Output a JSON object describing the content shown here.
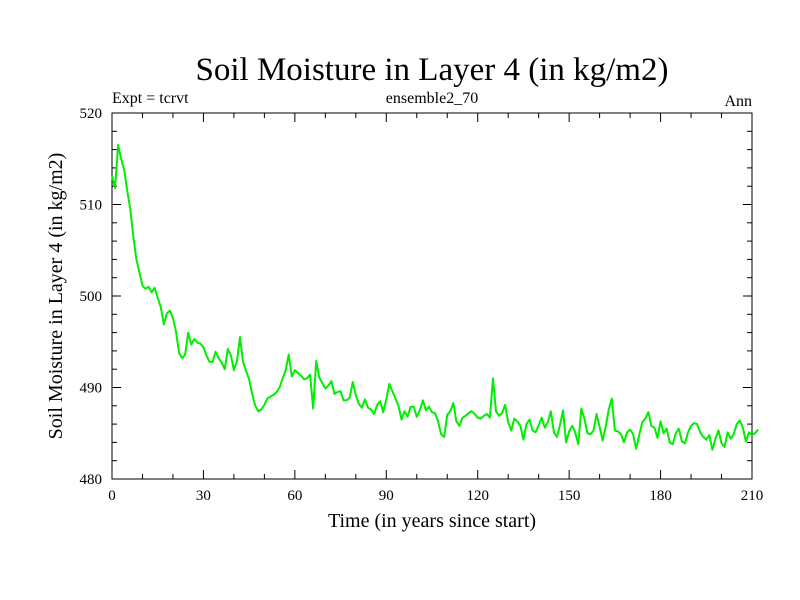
{
  "chart_data": {
    "type": "line",
    "title": "Soil Moisture in Layer 4 (in kg/m2)",
    "subtitle_left": "Expt = tcrvt",
    "subtitle_center": "ensemble2_70",
    "subtitle_right": "Ann",
    "xlabel": "Time (in years since start)",
    "ylabel": "Soil Moisture in Layer 4 (in kg/m2)",
    "xlim": [
      0,
      210
    ],
    "ylim": [
      480,
      520
    ],
    "x_ticks": [
      0,
      30,
      60,
      90,
      120,
      150,
      180,
      210
    ],
    "y_ticks": [
      480,
      490,
      500,
      510,
      520
    ],
    "series": [
      {
        "name": "ensemble2_70",
        "color": "#00ee00",
        "values": [
          513.1,
          511.8,
          516.5,
          515.0,
          513.8,
          511.5,
          509.5,
          506.5,
          504.0,
          502.6,
          501.1,
          500.8,
          501.0,
          500.4,
          500.9,
          499.8,
          498.8,
          496.9,
          498.1,
          498.4,
          497.6,
          496.1,
          493.8,
          493.2,
          493.6,
          496.0,
          494.7,
          495.3,
          494.9,
          494.8,
          494.4,
          493.5,
          492.8,
          492.8,
          493.9,
          493.2,
          492.7,
          492.0,
          494.2,
          493.5,
          491.9,
          492.9,
          495.5,
          492.8,
          491.8,
          490.9,
          489.3,
          488.0,
          487.4,
          487.6,
          488.1,
          488.8,
          489.0,
          489.2,
          489.5,
          490.0,
          491.0,
          491.9,
          493.6,
          491.2,
          491.9,
          491.6,
          491.3,
          490.9,
          491.0,
          491.4,
          487.7,
          492.9,
          491.1,
          490.5,
          489.9,
          490.2,
          490.7,
          489.3,
          489.5,
          489.6,
          488.6,
          488.6,
          488.9,
          490.6,
          489.2,
          488.2,
          487.8,
          488.7,
          487.8,
          487.6,
          487.1,
          488.1,
          488.5,
          487.3,
          488.7,
          490.4,
          489.6,
          488.8,
          488.0,
          486.5,
          487.4,
          486.8,
          487.9,
          487.9,
          486.8,
          487.5,
          488.6,
          487.5,
          487.9,
          487.3,
          487.2,
          486.3,
          484.9,
          484.6,
          487.0,
          487.4,
          488.3,
          486.3,
          485.8,
          486.7,
          486.9,
          487.2,
          487.4,
          487.1,
          486.7,
          486.6,
          486.9,
          487.1,
          486.7,
          491.0,
          487.4,
          486.9,
          487.2,
          488.1,
          486.2,
          485.3,
          486.6,
          486.3,
          485.8,
          484.3,
          486.0,
          486.5,
          485.3,
          485.1,
          485.9,
          486.7,
          485.6,
          486.2,
          487.4,
          485.1,
          484.6,
          485.9,
          487.5,
          484.0,
          485.2,
          485.8,
          485.1,
          483.8,
          487.7,
          486.6,
          485.0,
          484.9,
          485.3,
          487.1,
          485.7,
          484.2,
          485.7,
          487.6,
          488.8,
          485.3,
          485.2,
          484.9,
          484.0,
          485.1,
          485.4,
          484.9,
          483.3,
          484.8,
          486.2,
          486.6,
          487.3,
          485.8,
          485.6,
          484.5,
          486.3,
          485.0,
          485.5,
          484.0,
          483.8,
          485.0,
          485.5,
          484.1,
          483.9,
          485.1,
          485.8,
          486.1,
          486.0,
          485.1,
          484.6,
          484.3,
          484.8,
          483.2,
          484.4,
          485.3,
          483.9,
          483.5,
          485.1,
          484.4,
          484.9,
          486.0,
          486.4,
          485.6,
          484.1,
          485.1,
          484.8,
          485.0,
          485.4
        ]
      }
    ]
  }
}
